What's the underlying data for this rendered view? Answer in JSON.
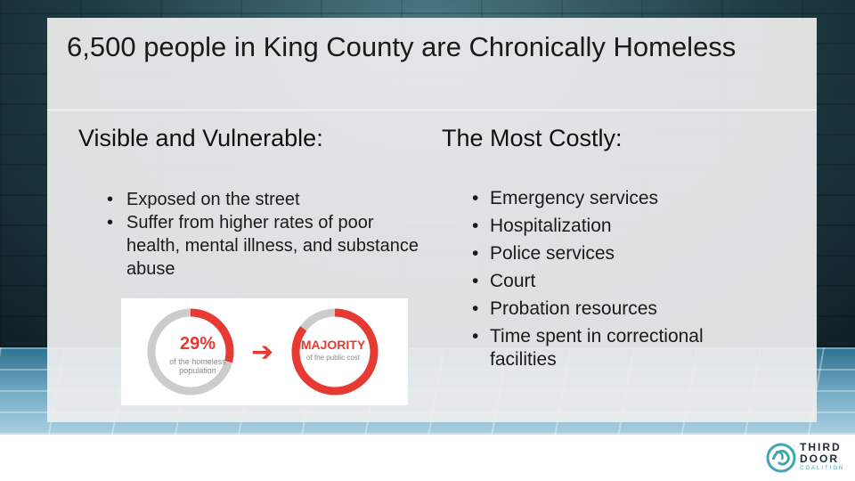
{
  "slide": {
    "title": "6,500 people in King County are Chronically Homeless"
  },
  "left": {
    "heading": "Visible and Vulnerable:",
    "bullets": [
      "Exposed on the street",
      "Suffer from higher rates of poor health, mental illness, and substance abuse"
    ],
    "graphic": {
      "stat_value": "29%",
      "stat_caption": "of the homeless population",
      "stat_fraction": 0.29,
      "result_value": "MAJORITY",
      "result_caption": "of the public cost",
      "result_fraction": 0.85,
      "accent_color": "#e63a32",
      "track_color": "#cccccc",
      "arrow_icon": "arrow-right-icon"
    }
  },
  "right": {
    "heading": "The Most Costly:",
    "bullets": [
      "Emergency services",
      "Hospitalization",
      "Police services",
      "Court",
      "Probation resources",
      "Time spent in correctional facilities"
    ]
  },
  "logo": {
    "line1": "THIRD",
    "line2": "DOOR",
    "line3": "COALITION",
    "icon": "swirl-logo-icon",
    "color_dark": "#1d2a3a",
    "color_accent": "#3fa7b4"
  }
}
